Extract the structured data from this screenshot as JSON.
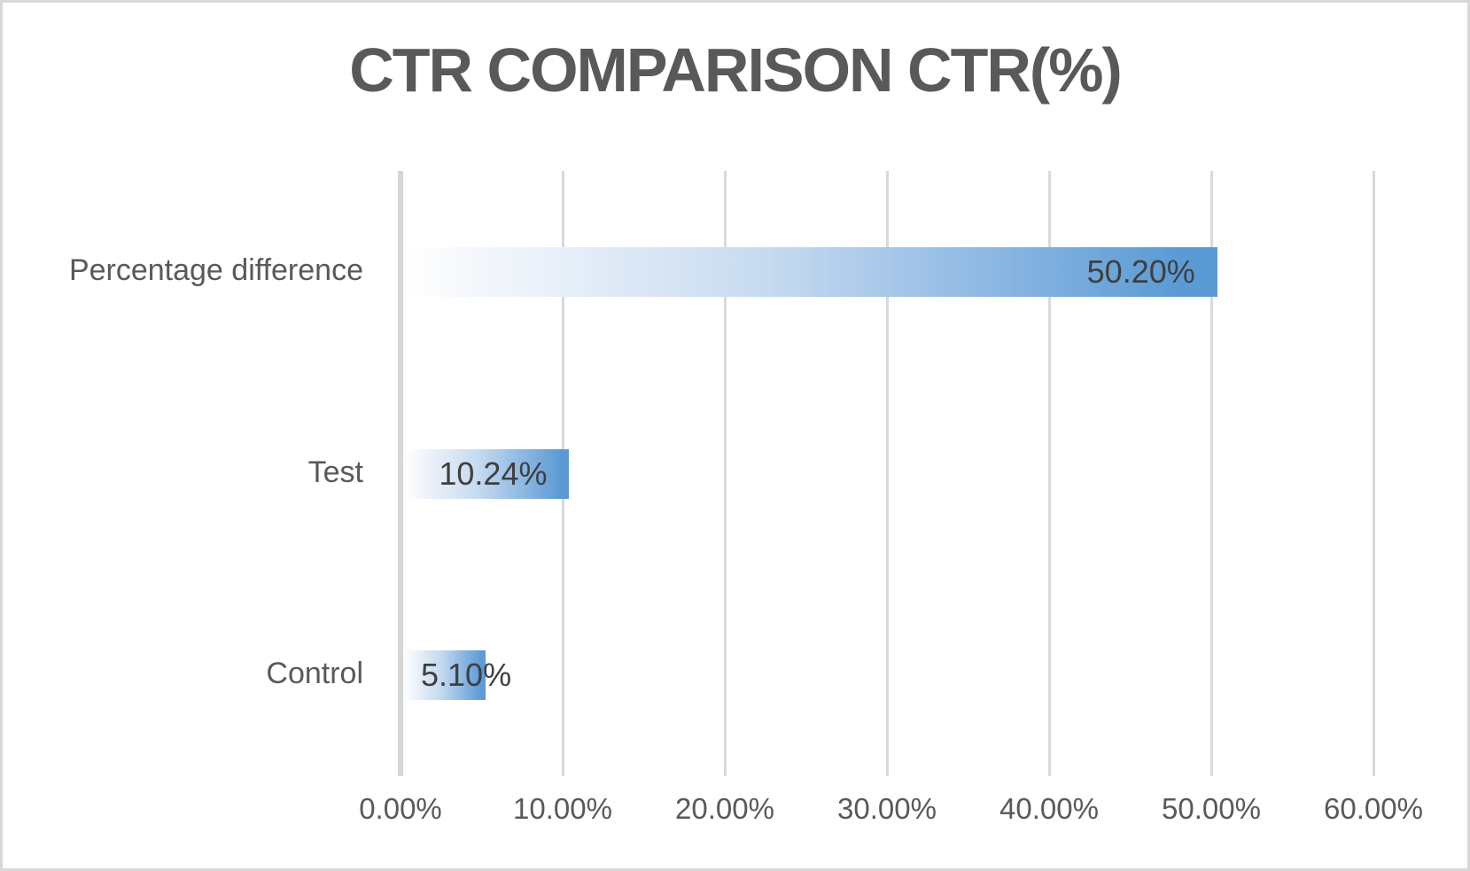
{
  "chart_data": {
    "type": "bar",
    "orientation": "horizontal",
    "title": "CTR COMPARISON CTR(%)",
    "categories": [
      "Percentage difference",
      "Test",
      "Control"
    ],
    "values": [
      50.2,
      10.24,
      5.1
    ],
    "data_labels": [
      "50.20%",
      "10.24%",
      "5.10%"
    ],
    "xlabel": "",
    "ylabel": "",
    "xlim": [
      0,
      60
    ],
    "x_tick_step": 10,
    "x_tick_labels": [
      "0.00%",
      "10.00%",
      "20.00%",
      "30.00%",
      "40.00%",
      "50.00%",
      "60.00%"
    ],
    "grid": true,
    "legend": false,
    "data_label_position": "inside-end"
  },
  "colors": {
    "bar_fill_end": "#5b9bd5",
    "bar_fill_start": "#ffffff",
    "gridline": "#d9d9d9",
    "axis_line": "#d6d6d6",
    "title_text": "#595959",
    "axis_text": "#595959",
    "data_label_text": "#3f3f3f",
    "page_border": "#d8d8d8",
    "background": "#ffffff"
  }
}
